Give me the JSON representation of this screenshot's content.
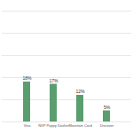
{
  "chart_data": {
    "type": "bar",
    "categories": [
      "Visa",
      "NXP Puppy Dasher",
      "Mountain Card",
      "Discover"
    ],
    "values": [
      18,
      17,
      12,
      5
    ],
    "value_labels": [
      "18%",
      "17%",
      "12%",
      "5%"
    ],
    "data_labels": true,
    "color": "#5a9e6f",
    "ylim": [
      0,
      50
    ],
    "yticks": [
      0,
      10,
      20,
      30,
      40,
      50
    ],
    "grid": true,
    "tick_labels": "x"
  }
}
